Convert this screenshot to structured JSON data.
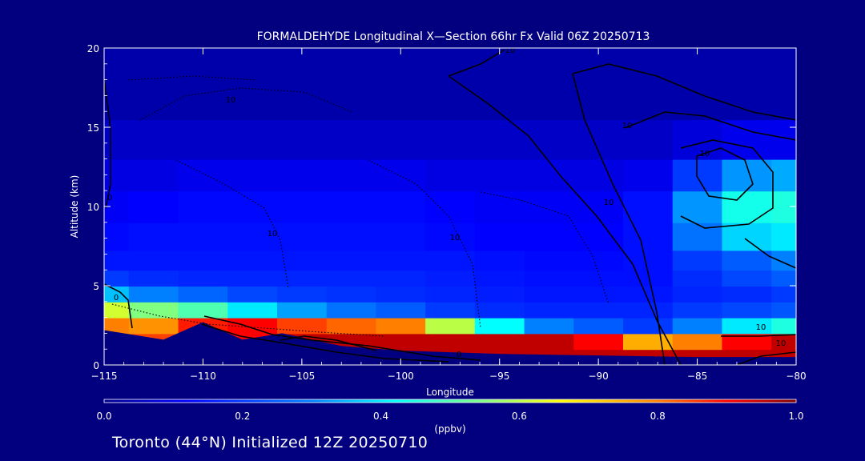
{
  "title": "FORMALDEHYDE Longitudinal X—Section 66hr  Fx Valid 06Z 20250713",
  "footer": "Toronto (44°N) Initialized 12Z 20250710",
  "colors": {
    "background": "#03007f",
    "axes": "#ffffff",
    "contour": "#000000"
  },
  "chart_data": {
    "type": "heatmap",
    "title": "FORMALDEHYDE Longitudinal X—Section 66hr  Fx Valid 06Z 20250713",
    "xlabel": "Longitude",
    "ylabel": "Altitude (km)",
    "xlim": [
      -115,
      -80
    ],
    "ylim": [
      0,
      20
    ],
    "xticks": [
      "−115",
      "−110",
      "−105",
      "−100",
      "−95",
      "−90",
      "−85",
      "−80"
    ],
    "xtick_values": [
      -115,
      -110,
      -105,
      -100,
      -95,
      -90,
      -85,
      -80
    ],
    "yticks": [
      "0",
      "5",
      "10",
      "15",
      "20"
    ],
    "ytick_values": [
      0,
      5,
      10,
      15,
      20
    ],
    "colorbar": {
      "label": "(ppbv)",
      "range": [
        0.0,
        1.0
      ],
      "ticks": [
        "0.0",
        "0.2",
        "0.4",
        "0.6",
        "0.8",
        "1.0"
      ],
      "tick_values": [
        0.0,
        0.2,
        0.4,
        0.6,
        0.8,
        1.0
      ]
    },
    "terrain_km": [
      [
        -115,
        2.2
      ],
      [
        -112,
        1.6
      ],
      [
        -110,
        2.7
      ],
      [
        -108,
        1.6
      ],
      [
        -106,
        2.0
      ],
      [
        -103,
        1.2
      ],
      [
        -100,
        0.9
      ],
      [
        -95,
        0.7
      ],
      [
        -90,
        0.6
      ],
      [
        -85,
        0.5
      ],
      [
        -80,
        0.5
      ]
    ],
    "field_ppbv": {
      "x": [
        -115,
        -112.5,
        -110,
        -107.5,
        -105,
        -102.5,
        -100,
        -97.5,
        -95,
        -92.5,
        -90,
        -87.5,
        -85,
        -82.5,
        -80
      ],
      "y": [
        0.5,
        1.5,
        2.5,
        3.5,
        4.5,
        5.5,
        6.5,
        8,
        10,
        12,
        14,
        17
      ],
      "values": [
        [
          0.95,
          0.95,
          0.95,
          0.95,
          0.95,
          0.95,
          0.95,
          0.95,
          0.95,
          0.95,
          0.95,
          0.95,
          0.95,
          0.95,
          0.95
        ],
        [
          0.9,
          0.85,
          0.8,
          0.9,
          0.95,
          0.95,
          0.95,
          0.95,
          0.95,
          0.95,
          0.9,
          0.75,
          0.8,
          0.9,
          0.95
        ],
        [
          0.8,
          0.78,
          0.88,
          0.9,
          0.85,
          0.82,
          0.8,
          0.6,
          0.42,
          0.3,
          0.25,
          0.2,
          0.3,
          0.4,
          0.45
        ],
        [
          0.62,
          0.55,
          0.5,
          0.4,
          0.33,
          0.28,
          0.25,
          0.2,
          0.18,
          0.17,
          0.17,
          0.17,
          0.2,
          0.22,
          0.24
        ],
        [
          0.36,
          0.3,
          0.26,
          0.22,
          0.2,
          0.19,
          0.18,
          0.17,
          0.16,
          0.15,
          0.15,
          0.15,
          0.17,
          0.18,
          0.2
        ],
        [
          0.2,
          0.18,
          0.17,
          0.17,
          0.17,
          0.17,
          0.17,
          0.16,
          0.15,
          0.14,
          0.14,
          0.14,
          0.18,
          0.22,
          0.25
        ],
        [
          0.15,
          0.15,
          0.15,
          0.15,
          0.15,
          0.15,
          0.15,
          0.15,
          0.14,
          0.13,
          0.13,
          0.14,
          0.2,
          0.25,
          0.3
        ],
        [
          0.13,
          0.14,
          0.14,
          0.14,
          0.14,
          0.14,
          0.14,
          0.13,
          0.12,
          0.12,
          0.12,
          0.14,
          0.28,
          0.38,
          0.4
        ],
        [
          0.11,
          0.12,
          0.13,
          0.13,
          0.13,
          0.13,
          0.13,
          0.12,
          0.11,
          0.11,
          0.11,
          0.14,
          0.32,
          0.44,
          0.45
        ],
        [
          0.09,
          0.09,
          0.1,
          0.1,
          0.1,
          0.1,
          0.1,
          0.09,
          0.09,
          0.09,
          0.09,
          0.1,
          0.2,
          0.32,
          0.34
        ],
        [
          0.06,
          0.06,
          0.06,
          0.06,
          0.06,
          0.06,
          0.06,
          0.06,
          0.06,
          0.06,
          0.06,
          0.06,
          0.08,
          0.1,
          0.1
        ],
        [
          0.03,
          0.03,
          0.03,
          0.03,
          0.03,
          0.03,
          0.03,
          0.03,
          0.03,
          0.03,
          0.03,
          0.03,
          0.03,
          0.03,
          0.03
        ]
      ]
    },
    "contour_labels": [
      "10",
      "10",
      "10",
      "10",
      "10",
      "10",
      "10",
      "10",
      "0",
      "0",
      "0",
      "10"
    ],
    "grid": false,
    "legend": "colorbar-bottom"
  }
}
